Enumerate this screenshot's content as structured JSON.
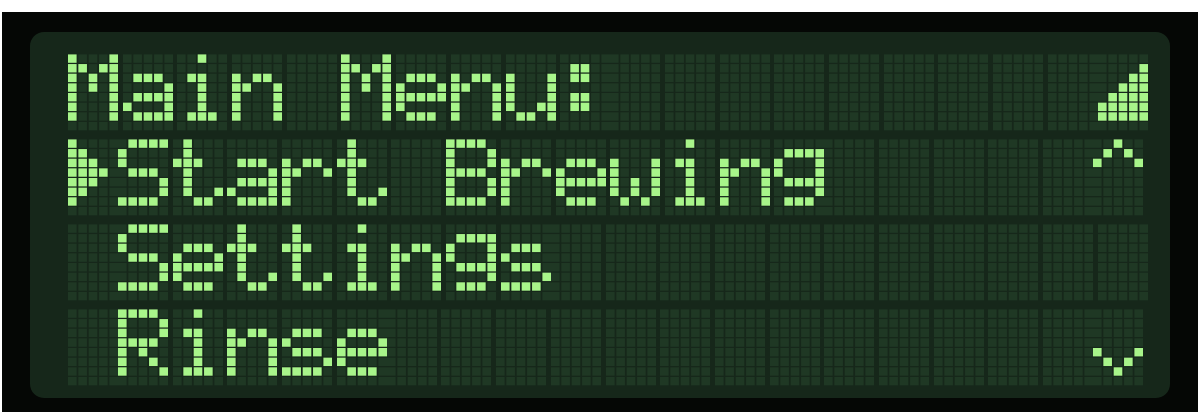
{
  "display": {
    "columns": 20,
    "rows_count": 4,
    "colors": {
      "pixel_on": "#a8f58a",
      "pixel_off": "#1f3824",
      "background": "#16271a",
      "bezel": "#050705"
    }
  },
  "screen": {
    "title": "Main Menu:",
    "status_icon": "signal-strength-icon",
    "cursor_icon": "right-triangle-cursor-icon",
    "items": [
      {
        "label": "Start Brewing",
        "selected": true
      },
      {
        "label": "Settings",
        "selected": false
      },
      {
        "label": "Rinse",
        "selected": false
      }
    ],
    "scroll_up_icon": "scroll-up-caret-icon",
    "scroll_down_icon": "scroll-down-caret-icon"
  }
}
